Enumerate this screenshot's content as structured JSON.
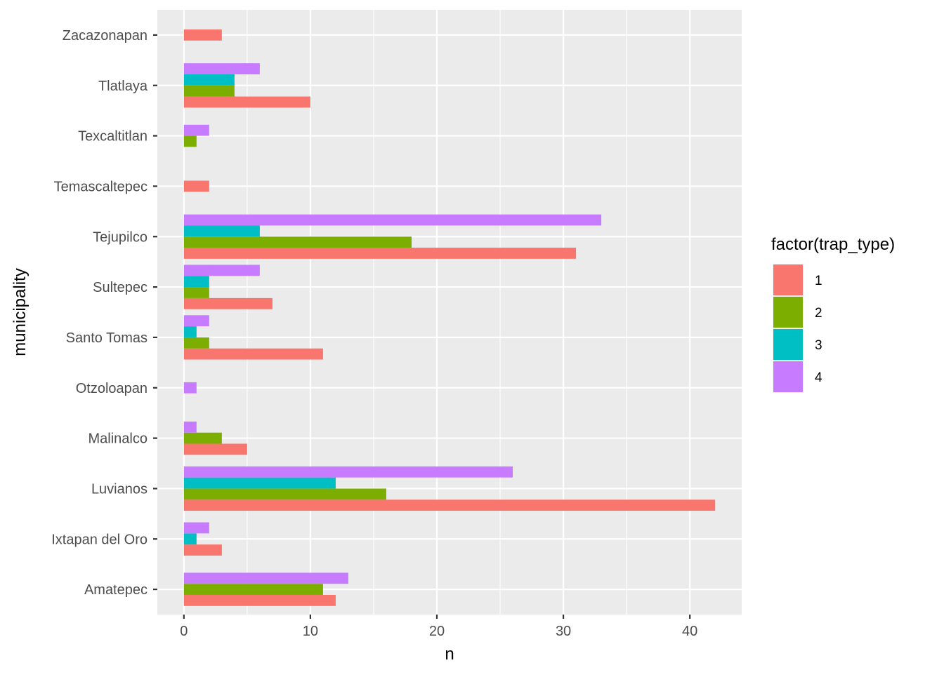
{
  "chart_data": {
    "type": "bar",
    "orientation": "horizontal",
    "xlabel": "n",
    "ylabel": "municipality",
    "xlim": [
      -2.1,
      44.1
    ],
    "xticks": [
      0,
      10,
      20,
      30,
      40
    ],
    "xtick_labels": [
      "0",
      "10",
      "20",
      "30",
      "40"
    ],
    "grid": true,
    "legend": {
      "title": "factor(trap_type)",
      "position": "right"
    },
    "categories": [
      "Amatepec",
      "Ixtapan del Oro",
      "Luvianos",
      "Malinalco",
      "Otzoloapan",
      "Santo Tomas",
      "Sultepec",
      "Tejupilco",
      "Temascaltepec",
      "Texcaltitlan",
      "Tlatlaya",
      "Zacazonapan"
    ],
    "series": [
      {
        "name": "1",
        "color": "#F8766D",
        "values": [
          12,
          3,
          42,
          5,
          0,
          11,
          7,
          31,
          2,
          0,
          10,
          3
        ]
      },
      {
        "name": "2",
        "color": "#7CAE00",
        "values": [
          11,
          0,
          16,
          3,
          0,
          2,
          2,
          18,
          0,
          1,
          4,
          0
        ]
      },
      {
        "name": "3",
        "color": "#00BFC4",
        "values": [
          0,
          1,
          12,
          0,
          0,
          1,
          2,
          6,
          0,
          0,
          4,
          0
        ]
      },
      {
        "name": "4",
        "color": "#C77CFF",
        "values": [
          13,
          2,
          26,
          1,
          1,
          2,
          6,
          33,
          0,
          2,
          6,
          0
        ]
      }
    ]
  }
}
